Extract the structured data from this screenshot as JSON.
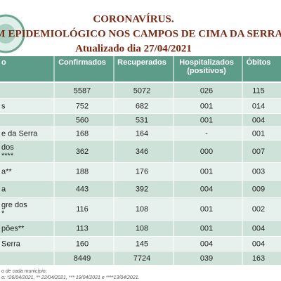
{
  "header": {
    "title": "CORONAVÍRUS.",
    "subtitle": "TIM EPIDEMIOLÓGICO NOS  CAMPOS DE CIMA DA SERRA",
    "updated": "Atualizado dia 27/04/2021"
  },
  "table": {
    "columns": [
      "o",
      "Confirmados",
      "Recuperados",
      "Hospitalizados",
      "Óbitos"
    ],
    "column_note": "(positivos)",
    "rows": [
      {
        "label": null,
        "values": [
          "5587",
          "5072",
          "026",
          "115"
        ]
      },
      {
        "label": [
          "s"
        ],
        "values": [
          "752",
          "682",
          "001",
          "014"
        ]
      },
      {
        "label": null,
        "values": [
          "560",
          "531",
          "001",
          "004"
        ]
      },
      {
        "label": [
          "e da Serra"
        ],
        "values": [
          "168",
          "164",
          "-",
          "001"
        ]
      },
      {
        "label": [
          "dos",
          "****"
        ],
        "values": [
          "362",
          "346",
          "000",
          "007"
        ]
      },
      {
        "label": [
          "a**"
        ],
        "values": [
          "188",
          "176",
          "001",
          "003"
        ]
      },
      {
        "label": [
          "a"
        ],
        "values": [
          "443",
          "392",
          "004",
          "009"
        ]
      },
      {
        "label": [
          "gre dos",
          "*"
        ],
        "values": [
          "116",
          "108",
          "001",
          "002"
        ]
      },
      {
        "label": [
          "pões**"
        ],
        "values": [
          "113",
          "108",
          "001",
          "004"
        ]
      },
      {
        "label": [
          "Serra"
        ],
        "values": [
          "160",
          "145",
          "004",
          "004"
        ]
      },
      {
        "label": null,
        "values": [
          "8449",
          "7724",
          "039",
          "163"
        ]
      }
    ]
  },
  "footer": [
    "o de cada município;",
    "o: *26/04/2021, ** 22/04/2021, *** 19/04/2021 e ****13/04/2021."
  ]
}
